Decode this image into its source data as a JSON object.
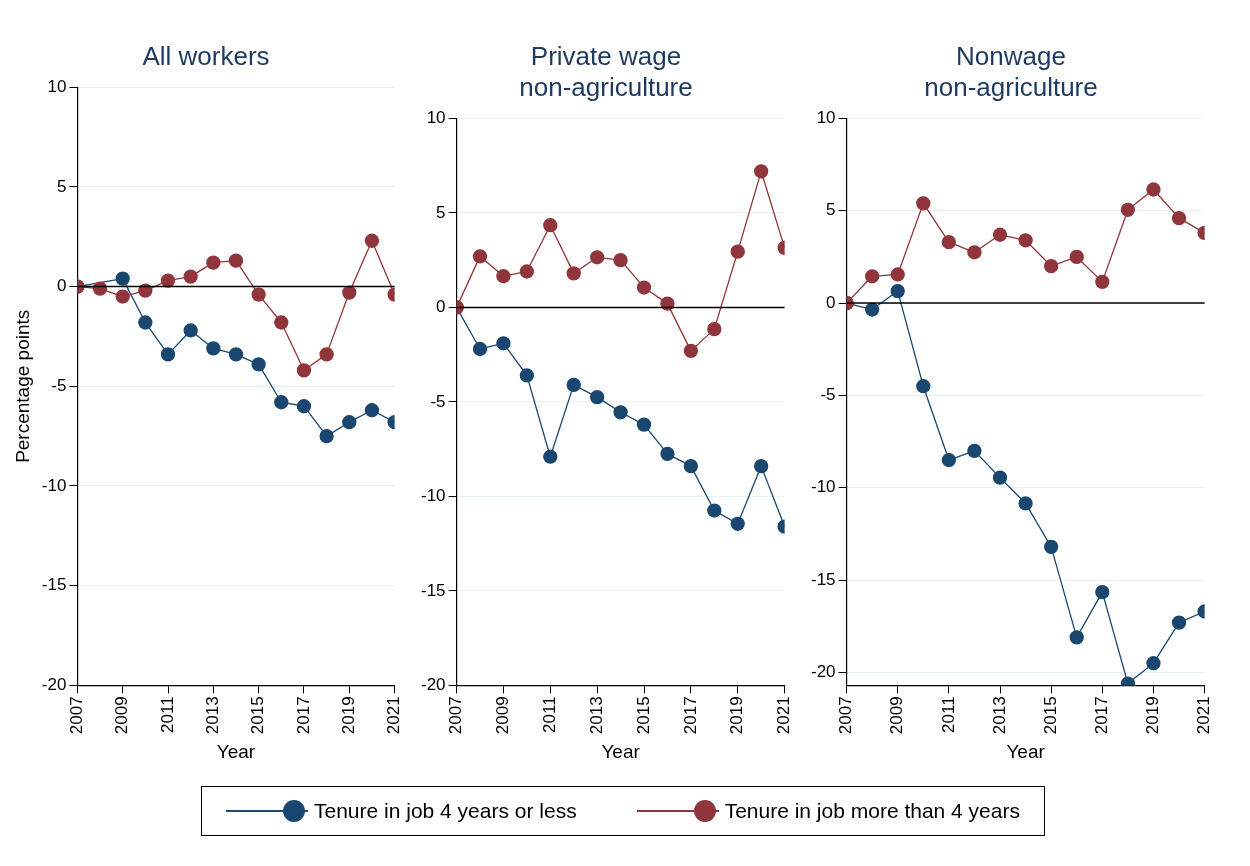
{
  "chart_data": [
    {
      "type": "line",
      "title": "All workers",
      "xlabel": "Year",
      "ylabel": "Percentage points",
      "x": [
        2007,
        2008,
        2009,
        2010,
        2011,
        2012,
        2013,
        2014,
        2015,
        2016,
        2017,
        2018,
        2019,
        2020,
        2021
      ],
      "xlim": [
        2007,
        2021
      ],
      "xticks": [
        2007,
        2009,
        2011,
        2013,
        2015,
        2017,
        2019,
        2021
      ],
      "ylim": [
        -20,
        10
      ],
      "yticks": [
        -20,
        -15,
        -10,
        -5,
        0,
        5,
        10
      ],
      "grid": "y",
      "marker": "circle",
      "legend": "bottom",
      "ref_lines": [
        {
          "axis": "y",
          "value": 0,
          "color": "#000000"
        }
      ],
      "series": [
        {
          "name": "Tenure in job 4 years or less",
          "color": "#1a476f",
          "values": [
            0,
            null,
            0.4,
            -1.8,
            -3.4,
            -2.2,
            -3.1,
            -3.4,
            -3.9,
            -5.8,
            -6.0,
            -7.5,
            -6.8,
            -6.2,
            -6.8
          ]
        },
        {
          "name": "Tenure in job more than 4 years",
          "color": "#90353b",
          "values": [
            0,
            -0.1,
            -0.5,
            -0.2,
            0.3,
            0.5,
            1.2,
            1.3,
            -0.4,
            -1.8,
            -4.2,
            -3.4,
            -0.3,
            2.3,
            -0.4
          ]
        }
      ]
    },
    {
      "type": "line",
      "title": "Private wage\nnon-agriculture",
      "xlabel": "Year",
      "x": [
        2007,
        2008,
        2009,
        2010,
        2011,
        2012,
        2013,
        2014,
        2015,
        2016,
        2017,
        2018,
        2019,
        2020,
        2021
      ],
      "xlim": [
        2007,
        2021
      ],
      "xticks": [
        2007,
        2009,
        2011,
        2013,
        2015,
        2017,
        2019,
        2021
      ],
      "ylim": [
        -20,
        10
      ],
      "yticks": [
        -20,
        -15,
        -10,
        -5,
        0,
        5,
        10
      ],
      "grid": "y",
      "marker": "circle",
      "ref_lines": [
        {
          "axis": "y",
          "value": 0,
          "color": "#000000"
        }
      ],
      "series": [
        {
          "color": "#1a476f",
          "values": [
            0,
            -2.2,
            -1.9,
            -3.6,
            -7.9,
            -4.1,
            -4.75,
            -5.55,
            -6.2,
            -7.75,
            -8.4,
            -10.75,
            -11.45,
            -8.4,
            -11.6
          ]
        },
        {
          "color": "#90353b",
          "values": [
            0,
            2.7,
            1.65,
            1.9,
            4.35,
            1.8,
            2.65,
            2.5,
            1.05,
            0.2,
            -2.3,
            -1.15,
            2.95,
            7.2,
            3.15
          ]
        }
      ]
    },
    {
      "type": "line",
      "title": "Nonwage\nnon-agriculture",
      "xlabel": "Year",
      "x": [
        2007,
        2008,
        2009,
        2010,
        2011,
        2012,
        2013,
        2014,
        2015,
        2016,
        2017,
        2018,
        2019,
        2020,
        2021
      ],
      "xlim": [
        2007,
        2021
      ],
      "xticks": [
        2007,
        2009,
        2011,
        2013,
        2015,
        2017,
        2019,
        2021
      ],
      "ylim": [
        -20.7,
        10
      ],
      "yticks": [
        -20,
        -15,
        -10,
        -5,
        0,
        5,
        10
      ],
      "grid": "y",
      "marker": "circle",
      "ref_lines": [
        {
          "axis": "y",
          "value": 0,
          "color": "#000000"
        }
      ],
      "series": [
        {
          "color": "#1a476f",
          "values": [
            0,
            -0.35,
            0.65,
            -4.5,
            -8.5,
            -8.0,
            -9.45,
            -10.85,
            -13.2,
            -18.1,
            -15.65,
            -20.6,
            -19.5,
            -17.3,
            -16.7
          ]
        },
        {
          "color": "#90353b",
          "values": [
            0,
            1.45,
            1.55,
            5.4,
            3.3,
            2.75,
            3.7,
            3.4,
            2.0,
            2.5,
            1.15,
            5.05,
            6.15,
            4.6,
            3.8
          ]
        }
      ]
    }
  ]
}
